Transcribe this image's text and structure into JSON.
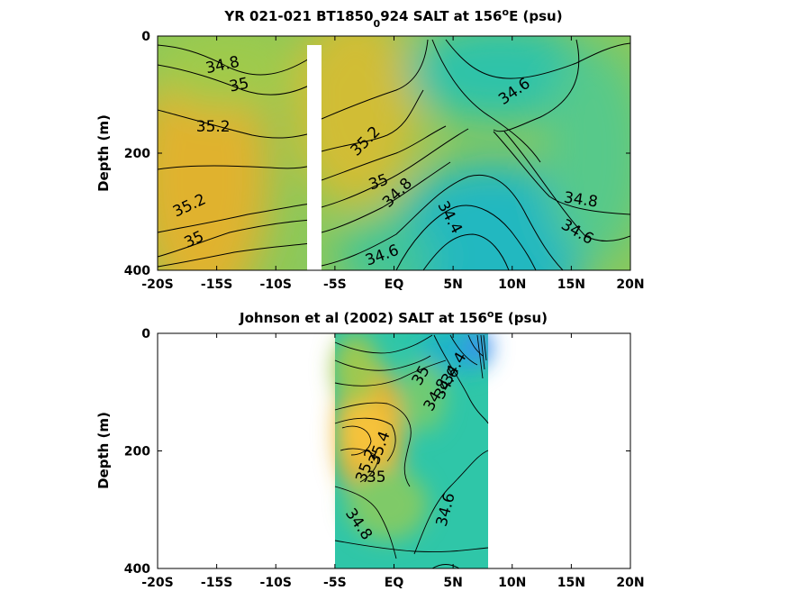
{
  "chart_data": [
    {
      "type": "heatmap",
      "title_parts": [
        "YR 021-021 BT1850",
        "0",
        "924 SALT at 156",
        "o",
        "E (psu)"
      ],
      "ylabel": "Depth (m)",
      "x_ticks": [
        "-20S",
        "-15S",
        "-10S",
        "-5S",
        "EQ",
        "5N",
        "10N",
        "15N",
        "20N"
      ],
      "x_tick_values": [
        -20,
        -15,
        -10,
        -5,
        0,
        5,
        10,
        15,
        20
      ],
      "y_ticks": [
        "0",
        "200",
        "400"
      ],
      "y_tick_values": [
        0,
        200,
        400
      ],
      "xlim": [
        -20,
        20
      ],
      "ylim": [
        400,
        0
      ],
      "data_extent": [
        -20,
        20
      ],
      "gap_latitudes": [
        -7.0,
        -6.0
      ],
      "colormap": [
        "#3d8ff0",
        "#1bb3cc",
        "#2fc6a6",
        "#6fcb72",
        "#b7c23b",
        "#e8b12e",
        "#f9c93a"
      ],
      "color_range": [
        34.2,
        35.5
      ],
      "contour_labels": [
        {
          "text": "34.8",
          "lat": -14.5,
          "depth": 50,
          "angle": -12
        },
        {
          "text": "35",
          "lat": -13.1,
          "depth": 84,
          "angle": -12
        },
        {
          "text": "35.2",
          "lat": -15.3,
          "depth": 155,
          "angle": 0
        },
        {
          "text": "35.2",
          "lat": -2.4,
          "depth": 180,
          "angle": -45
        },
        {
          "text": "35",
          "lat": -1.3,
          "depth": 250,
          "angle": -20
        },
        {
          "text": "34.8",
          "lat": 0.3,
          "depth": 268,
          "angle": -45
        },
        {
          "text": "34.6",
          "lat": 10.2,
          "depth": 95,
          "angle": -35
        },
        {
          "text": "34.4",
          "lat": 4.7,
          "depth": 310,
          "angle": 62
        },
        {
          "text": "34.8",
          "lat": 15.8,
          "depth": 280,
          "angle": 8
        },
        {
          "text": "34.6",
          "lat": 15.5,
          "depth": 335,
          "angle": 30
        },
        {
          "text": "35.2",
          "lat": -17.3,
          "depth": 290,
          "angle": -25
        },
        {
          "text": "35",
          "lat": -16.9,
          "depth": 348,
          "angle": -25
        },
        {
          "text": "34.6",
          "lat": -1.0,
          "depth": 375,
          "angle": -20
        }
      ]
    },
    {
      "type": "heatmap",
      "title_parts": [
        "Johnson et al (2002) SALT at 156",
        "o",
        "E (psu)"
      ],
      "ylabel": "Depth (m)",
      "x_ticks": [
        "-20S",
        "-15S",
        "-10S",
        "-5S",
        "EQ",
        "5N",
        "10N",
        "15N",
        "20N"
      ],
      "x_tick_values": [
        -20,
        -15,
        -10,
        -5,
        0,
        5,
        10,
        15,
        20
      ],
      "y_ticks": [
        "0",
        "200",
        "400"
      ],
      "y_tick_values": [
        0,
        200,
        400
      ],
      "xlim": [
        -20,
        20
      ],
      "ylim": [
        400,
        0
      ],
      "data_extent": [
        -5,
        8
      ],
      "gap_latitudes": [],
      "colormap": [
        "#3d8ff0",
        "#1bb3cc",
        "#2fc6a6",
        "#6fcb72",
        "#b7c23b",
        "#e8b12e",
        "#f9c93a"
      ],
      "color_range": [
        34.2,
        35.5
      ],
      "contour_labels": [
        {
          "text": "34.4",
          "lat": 5.1,
          "depth": 60,
          "angle": -60
        },
        {
          "text": "34.6",
          "lat": 4.5,
          "depth": 85,
          "angle": -60
        },
        {
          "text": "34.8",
          "lat": 3.6,
          "depth": 105,
          "angle": -60
        },
        {
          "text": "35",
          "lat": 2.3,
          "depth": 72,
          "angle": -60
        },
        {
          "text": "35.4",
          "lat": -1.2,
          "depth": 195,
          "angle": -70
        },
        {
          "text": "35.2",
          "lat": -2.3,
          "depth": 225,
          "angle": -70
        },
        {
          "text": "35",
          "lat": -1.5,
          "depth": 245,
          "angle": 0
        },
        {
          "text": "34.6",
          "lat": 4.4,
          "depth": 300,
          "angle": -75
        },
        {
          "text": "34.8",
          "lat": -3.0,
          "depth": 325,
          "angle": 55
        }
      ]
    }
  ]
}
